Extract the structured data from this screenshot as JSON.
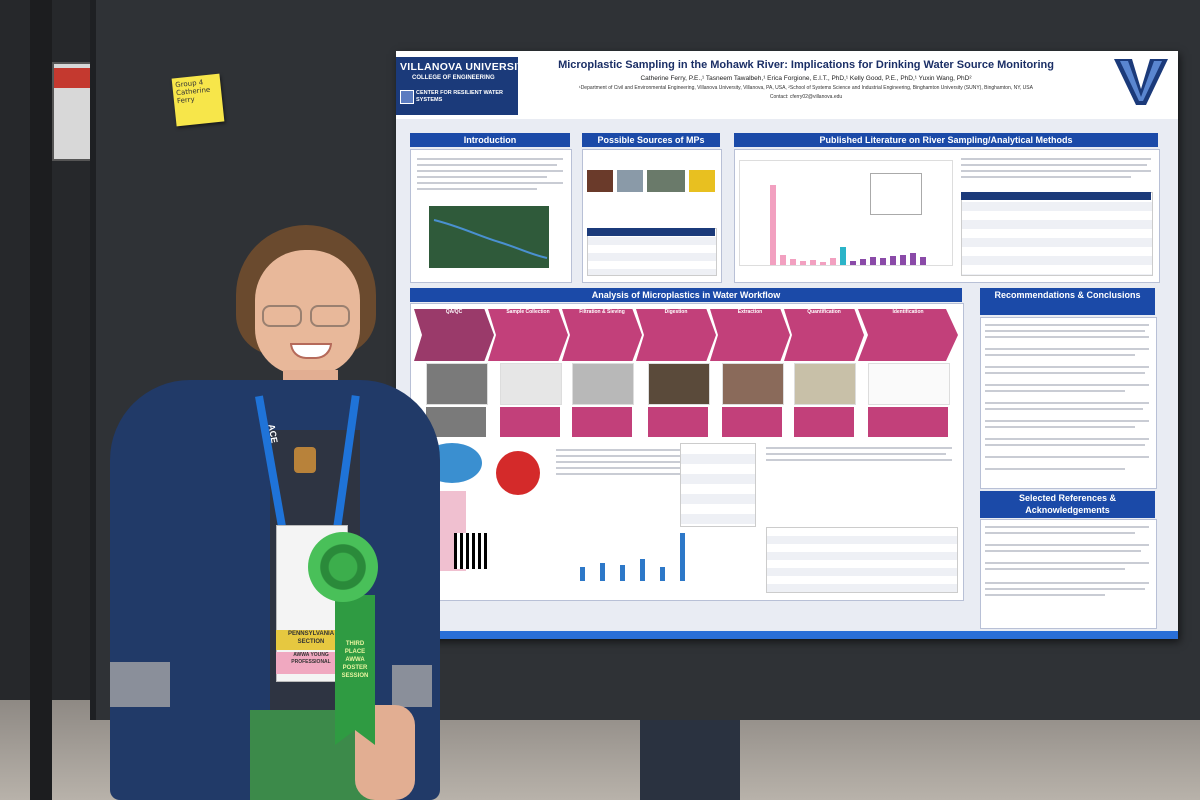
{
  "sticky_note": {
    "text": "Group 4 Catherine Ferry"
  },
  "poster": {
    "university": "VILLANOVA UNIVERSITY",
    "college": "COLLEGE OF ENGINEERING",
    "center": "CENTER FOR RESILIENT WATER SYSTEMS",
    "title": "Microplastic Sampling in the Mohawk River: Implications for Drinking Water Source Monitoring",
    "authors": "Catherine Ferry, P.E.,¹ Tasneem Tawalbeh,¹ Erica Forgione, E.I.T., PhD,¹ Kelly Good, P.E., PhD,¹ Yuxin Wang, PhD²",
    "affiliations": "¹Department of Civil and Environmental Engineering, Villanova University, Villanova, PA, USA, ²School of Systems Science and Industrial Engineering, Binghamton University (SUNY), Binghamton, NY, USA",
    "contact": "Contact: cferry02@villanova.edu",
    "sections": {
      "introduction": "Introduction",
      "sources": "Possible Sources of MPs",
      "literature": "Published Literature on River Sampling/Analytical Methods",
      "workflow": "Analysis of Microplastics in Water Workflow",
      "recommendations": "Recommendations & Conclusions",
      "references": "Selected References & Acknowledgements"
    },
    "workflow_steps": [
      "QA/QC",
      "Sample Collection",
      "Filtration & Sieving",
      "Digestion",
      "Extraction",
      "Quantification",
      "Identification"
    ],
    "workflow_bars_colors": [
      "#c2407a",
      "#d65a8c"
    ],
    "chart_colors": {
      "pink": "#f2a0c0",
      "teal": "#2bb4c8",
      "purple": "#8a4aa8",
      "blue": "#2d78c8"
    }
  },
  "attendee": {
    "lanyard_text": "ACE",
    "badge_section": "PENNSYLVANIA SECTION",
    "badge_role": "AWWA YOUNG PROFESSIONAL",
    "ribbon_text": "THIRD PLACE AWWA POSTER SESSION"
  }
}
